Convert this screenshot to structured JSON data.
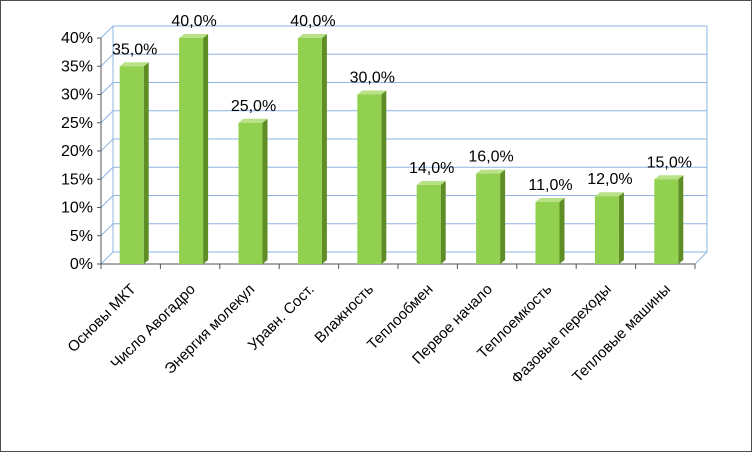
{
  "chart_data": {
    "type": "bar",
    "categories": [
      "Основы МКТ",
      "Число Авогадро",
      "Энергия молекул",
      "Уравн. Сост.",
      "Влажность",
      "Теплообмен",
      "Первое начало",
      "Теплоемкость",
      "Фазовые переходы",
      "Тепловые машины"
    ],
    "values": [
      35,
      40,
      25,
      40,
      30,
      14,
      16,
      11,
      12,
      15
    ],
    "data_labels": [
      "35,0%",
      "40,0%",
      "25,0%",
      "40,0%",
      "30,0%",
      "14,0%",
      "16,0%",
      "11,0%",
      "12,0%",
      "15,0%"
    ],
    "y_ticks": [
      "0%",
      "5%",
      "10%",
      "15%",
      "20%",
      "25%",
      "30%",
      "35%",
      "40%"
    ],
    "ylim": [
      0,
      40
    ],
    "grid": true,
    "legend": "none",
    "colors": {
      "bar_front": "#92d050",
      "bar_side": "#5e8d26",
      "bar_top": "#b9e188",
      "grid": "#8db4e2",
      "wall": "#8db4e2"
    }
  }
}
